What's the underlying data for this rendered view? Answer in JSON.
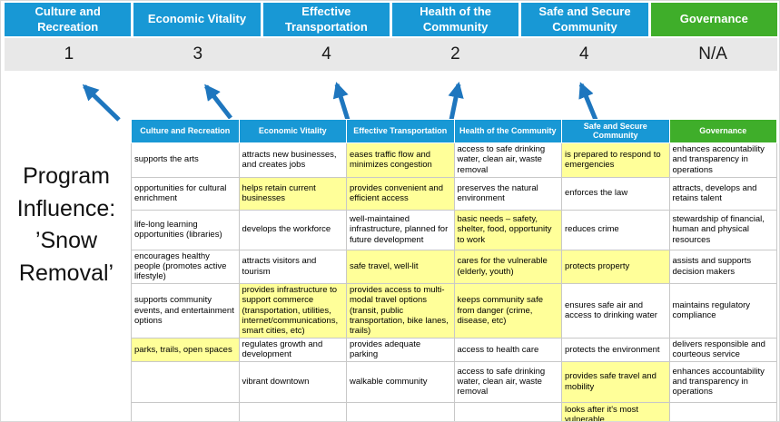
{
  "colors": {
    "blue": "#1898D5",
    "green": "#3FAE2A",
    "yellow": "#FFFF99",
    "score_bg": "#E8E8E8",
    "arrow": "#1E76BE"
  },
  "pillars": [
    {
      "label": "Culture and Recreation",
      "score": "1",
      "color": "blue"
    },
    {
      "label": "Economic Vitality",
      "score": "3",
      "color": "blue"
    },
    {
      "label": "Effective Transportation",
      "score": "4",
      "color": "blue"
    },
    {
      "label": "Health of the Community",
      "score": "2",
      "color": "blue"
    },
    {
      "label": "Safe and Secure Community",
      "score": "4",
      "color": "blue"
    },
    {
      "label": "Governance",
      "score": "N/A",
      "color": "green"
    }
  ],
  "program": {
    "lines": [
      "Program",
      "Influence:",
      "’Snow",
      "Removal’"
    ]
  },
  "table": {
    "headers": [
      {
        "label": "Culture and Recreation",
        "color": "blue"
      },
      {
        "label": "Economic Vitality",
        "color": "blue"
      },
      {
        "label": "Effective Transportation",
        "color": "blue"
      },
      {
        "label": "Health of the Community",
        "color": "blue"
      },
      {
        "label": "Safe and Secure Community",
        "color": "blue"
      },
      {
        "label": "Governance",
        "color": "green"
      }
    ],
    "rows": [
      [
        {
          "text": "supports the arts"
        },
        {
          "text": "attracts new businesses, and creates jobs"
        },
        {
          "text": "eases traffic flow and minimizes congestion",
          "highlight": true
        },
        {
          "text": "access to safe drinking water, clean air, waste removal"
        },
        {
          "text": "is prepared to respond to emergencies",
          "highlight": true
        },
        {
          "text": "enhances accountability and transparency in operations"
        }
      ],
      [
        {
          "text": "opportunities for cultural enrichment"
        },
        {
          "text": "helps retain current businesses",
          "highlight": true
        },
        {
          "text": "provides convenient and efficient access",
          "highlight": true
        },
        {
          "text": "preserves the natural environment"
        },
        {
          "text": "enforces the law"
        },
        {
          "text": "attracts, develops and retains talent"
        }
      ],
      [
        {
          "text": "life-long learning opportunities (libraries)"
        },
        {
          "text": "develops the workforce"
        },
        {
          "text": "well-maintained infrastructure, planned for future development"
        },
        {
          "text": "basic needs – safety, shelter, food, opportunity to work",
          "highlight": true
        },
        {
          "text": "reduces crime"
        },
        {
          "text": "stewardship of financial, human and physical resources"
        }
      ],
      [
        {
          "text": "encourages healthy people (promotes active lifestyle)"
        },
        {
          "text": "attracts visitors and tourism"
        },
        {
          "text": "safe travel, well-lit",
          "highlight": true
        },
        {
          "text": "cares for the vulnerable (elderly, youth)",
          "highlight": true
        },
        {
          "text": "protects property",
          "highlight": true
        },
        {
          "text": "assists and supports decision makers"
        }
      ],
      [
        {
          "text": "supports community events, and entertainment options"
        },
        {
          "text": "provides infrastructure to support commerce (transportation, utilities, internet/communications, smart cities, etc)",
          "highlight": true
        },
        {
          "text": "provides access to multi-modal travel options (transit, public transportation, bike lanes, trails)",
          "highlight": true
        },
        {
          "text": "keeps community safe from danger (crime, disease, etc)",
          "highlight": true
        },
        {
          "text": "ensures safe air and access to drinking water"
        },
        {
          "text": "maintains regulatory compliance"
        }
      ],
      [
        {
          "text": "parks, trails, open spaces",
          "highlight": true
        },
        {
          "text": "regulates growth and development"
        },
        {
          "text": "provides adequate parking"
        },
        {
          "text": "access to health care"
        },
        {
          "text": "protects the environment"
        },
        {
          "text": "delivers responsible and courteous service"
        }
      ],
      [
        {
          "text": ""
        },
        {
          "text": "vibrant downtown"
        },
        {
          "text": "walkable community"
        },
        {
          "text": "access to safe drinking water, clean air, waste removal"
        },
        {
          "text": "provides safe travel and mobility",
          "highlight": true
        },
        {
          "text": "enhances accountability and transparency in operations"
        }
      ],
      [
        {
          "text": ""
        },
        {
          "text": ""
        },
        {
          "text": ""
        },
        {
          "text": ""
        },
        {
          "text": "looks after it's most vulnerable",
          "highlight": true
        },
        {
          "text": ""
        }
      ]
    ]
  }
}
